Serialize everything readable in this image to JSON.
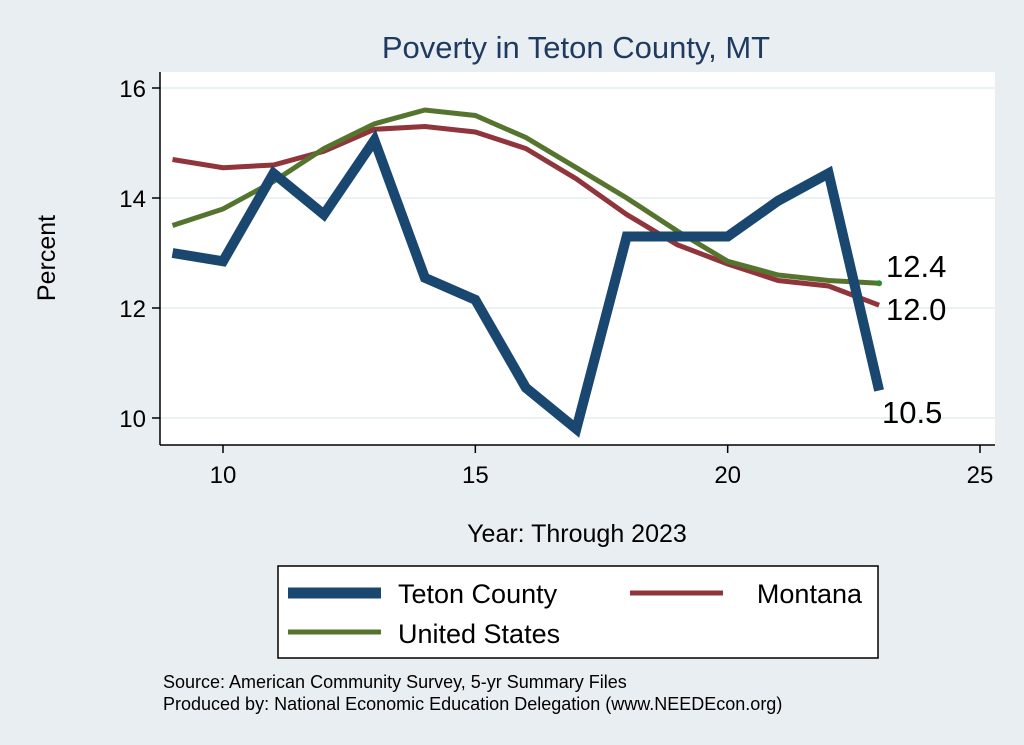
{
  "chart_data": {
    "type": "line",
    "title": "Poverty in Teton County, MT",
    "xlabel": "Year: Through 2023",
    "ylabel": "Percent",
    "xlim": [
      9,
      25
    ],
    "ylim": [
      9.8,
      16.2
    ],
    "xticks": [
      10,
      15,
      20,
      25
    ],
    "yticks": [
      10,
      12,
      14,
      16
    ],
    "grid": true,
    "legend_position": "bottom",
    "x": [
      9,
      10,
      11,
      12,
      13,
      14,
      15,
      16,
      17,
      18,
      19,
      20,
      21,
      22,
      23
    ],
    "series": [
      {
        "name": "Teton County",
        "color": "#1a476f",
        "values": [
          13.0,
          12.85,
          14.45,
          13.7,
          15.05,
          12.55,
          12.15,
          10.55,
          9.8,
          13.3,
          13.3,
          13.3,
          13.95,
          14.45,
          10.5
        ],
        "end_label": "10.5"
      },
      {
        "name": "Montana",
        "color": "#90353b",
        "values": [
          14.7,
          14.55,
          14.6,
          14.85,
          15.25,
          15.3,
          15.2,
          14.9,
          14.35,
          13.7,
          13.15,
          12.8,
          12.5,
          12.4,
          12.05
        ],
        "end_label": "12.0"
      },
      {
        "name": "United States",
        "color": "#55752f",
        "values": [
          13.5,
          13.8,
          14.3,
          14.9,
          15.35,
          15.6,
          15.5,
          15.1,
          14.55,
          14.0,
          13.4,
          12.85,
          12.6,
          12.5,
          12.45
        ],
        "end_label": "12.4"
      }
    ]
  },
  "notes": {
    "source": "Source: American Community Survey, 5-yr Summary Files",
    "produced_by": "Produced by: National Economic Education Delegation (www.NEEDEcon.org)"
  }
}
